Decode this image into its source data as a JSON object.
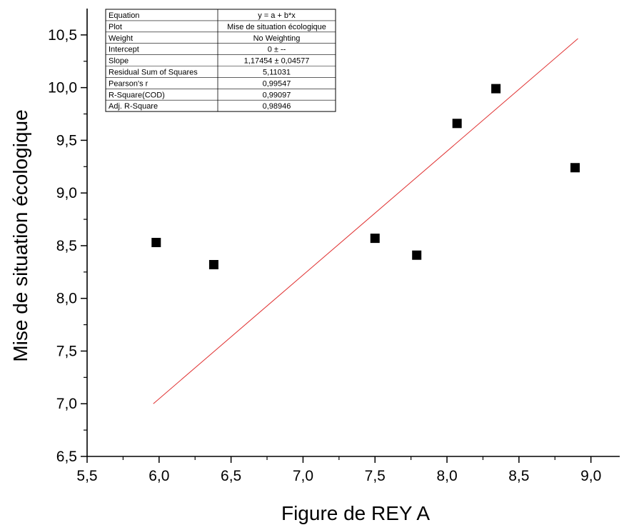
{
  "chart_data": {
    "type": "scatter",
    "title": "",
    "xlabel": "Figure de REY A",
    "ylabel": "Mise de situation écologique",
    "xlim": [
      5.5,
      9.2
    ],
    "ylim": [
      6.5,
      10.75
    ],
    "x_ticks": [
      "5,5",
      "6,0",
      "6,5",
      "7,0",
      "7,5",
      "8,0",
      "8,5",
      "9,0"
    ],
    "y_ticks": [
      "6,5",
      "7,0",
      "7,5",
      "8,0",
      "8,5",
      "9,0",
      "9,5",
      "10,0",
      "10,5"
    ],
    "grid": false,
    "series": [
      {
        "marker": "square",
        "color": "#000000",
        "points": [
          {
            "x": 5.98,
            "y": 8.53
          },
          {
            "x": 6.38,
            "y": 8.32
          },
          {
            "x": 7.5,
            "y": 8.57
          },
          {
            "x": 7.79,
            "y": 8.41
          },
          {
            "x": 8.07,
            "y": 9.66
          },
          {
            "x": 8.34,
            "y": 9.99
          },
          {
            "x": 8.89,
            "y": 9.24
          }
        ]
      }
    ],
    "fit_line": {
      "color": "#e03030",
      "x_start": 5.96,
      "x_end": 8.91,
      "slope": 1.17454,
      "intercept": 0
    },
    "stats_table": [
      [
        "Equation",
        "y = a + b*x"
      ],
      [
        "Plot",
        "Mise de situation écologique"
      ],
      [
        "Weight",
        "No Weighting"
      ],
      [
        "Intercept",
        "0 ± --"
      ],
      [
        "Slope",
        "1,17454 ± 0,04577"
      ],
      [
        "Residual Sum of Squares",
        "5,11031"
      ],
      [
        "Pearson's r",
        "0,99547"
      ],
      [
        "R-Square(COD)",
        "0,99097"
      ],
      [
        "Adj. R-Square",
        "0,98946"
      ]
    ]
  }
}
